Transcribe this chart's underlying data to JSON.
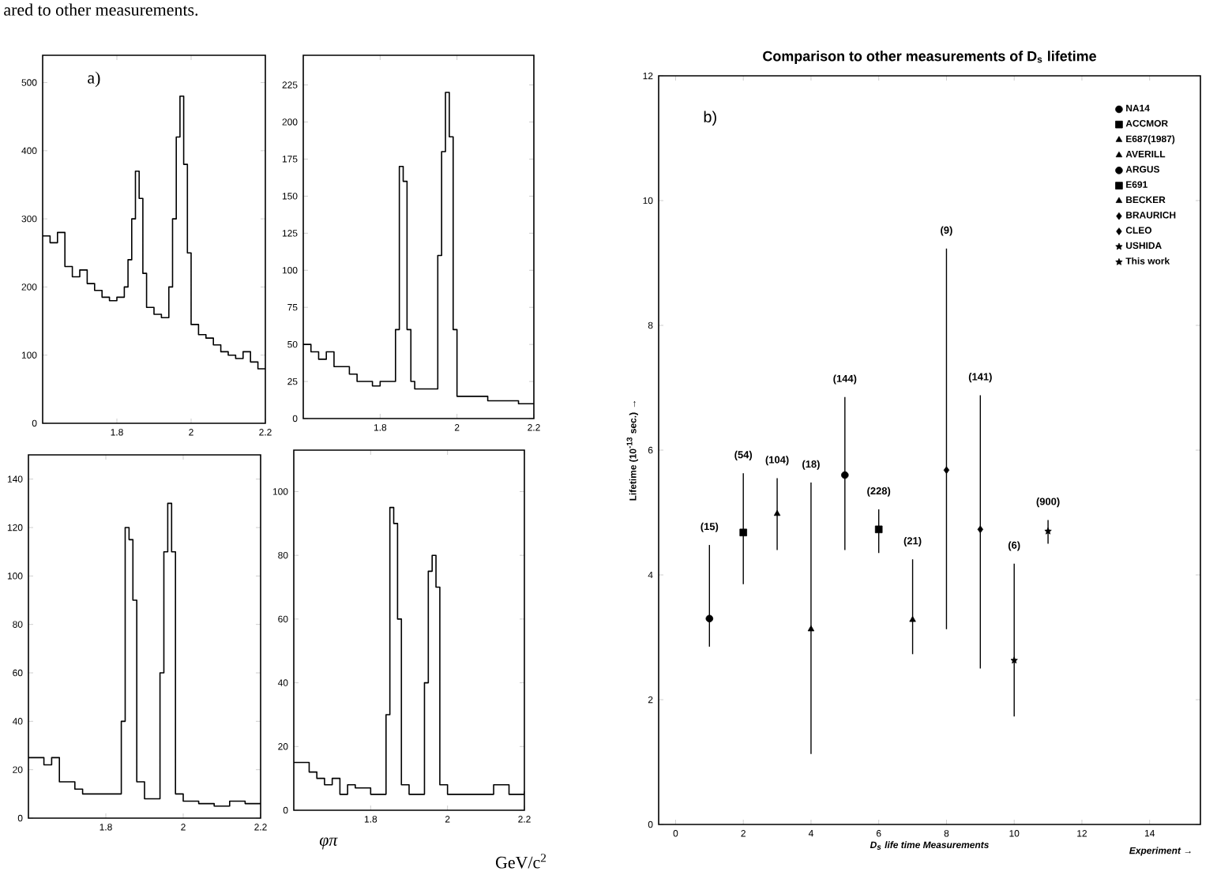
{
  "chart_data": [
    {
      "type": "step",
      "annotations": [
        "ared to other measurements.",
        "a)"
      ],
      "xlim": [
        1.6,
        2.2
      ],
      "ylim": [
        0,
        540
      ],
      "xticks": [
        1.8,
        2,
        2.2
      ],
      "yticks": [
        0,
        100,
        200,
        300,
        400,
        500
      ],
      "x": [
        1.6,
        1.62,
        1.64,
        1.66,
        1.68,
        1.7,
        1.72,
        1.74,
        1.76,
        1.78,
        1.8,
        1.82,
        1.83,
        1.84,
        1.85,
        1.86,
        1.87,
        1.88,
        1.9,
        1.92,
        1.94,
        1.95,
        1.96,
        1.97,
        1.98,
        1.99,
        2.0,
        2.02,
        2.04,
        2.06,
        2.08,
        2.1,
        2.12,
        2.14,
        2.16,
        2.18,
        2.2
      ],
      "series": [
        {
          "color": "#000000",
          "values": [
            275,
            265,
            280,
            230,
            215,
            225,
            205,
            195,
            185,
            180,
            185,
            200,
            240,
            300,
            370,
            330,
            220,
            170,
            160,
            155,
            200,
            300,
            420,
            480,
            380,
            250,
            145,
            130,
            125,
            115,
            105,
            100,
            95,
            105,
            90,
            80,
            80
          ]
        }
      ]
    },
    {
      "type": "step",
      "xlim": [
        1.6,
        2.2
      ],
      "ylim": [
        0,
        245
      ],
      "xticks": [
        1.8,
        2,
        2.2
      ],
      "yticks": [
        0,
        25,
        50,
        75,
        100,
        125,
        150,
        175,
        200,
        225
      ],
      "x": [
        1.6,
        1.62,
        1.64,
        1.66,
        1.68,
        1.7,
        1.72,
        1.74,
        1.76,
        1.78,
        1.8,
        1.82,
        1.84,
        1.85,
        1.86,
        1.87,
        1.88,
        1.89,
        1.91,
        1.93,
        1.95,
        1.96,
        1.97,
        1.98,
        1.99,
        2.0,
        2.04,
        2.08,
        2.12,
        2.16,
        2.2
      ],
      "series": [
        {
          "color": "#000000",
          "values": [
            50,
            45,
            40,
            45,
            35,
            35,
            30,
            25,
            25,
            22,
            25,
            25,
            60,
            170,
            160,
            60,
            25,
            20,
            20,
            20,
            110,
            180,
            220,
            190,
            60,
            15,
            15,
            12,
            12,
            10,
            10
          ]
        }
      ]
    },
    {
      "type": "step",
      "xlim": [
        1.6,
        2.2
      ],
      "ylim": [
        0,
        150
      ],
      "xticks": [
        1.8,
        2,
        2.2
      ],
      "yticks": [
        0,
        20,
        40,
        60,
        80,
        100,
        120,
        140
      ],
      "x": [
        1.6,
        1.62,
        1.64,
        1.66,
        1.68,
        1.7,
        1.72,
        1.74,
        1.76,
        1.78,
        1.8,
        1.82,
        1.84,
        1.85,
        1.86,
        1.87,
        1.88,
        1.9,
        1.92,
        1.94,
        1.95,
        1.96,
        1.97,
        1.98,
        2.0,
        2.04,
        2.08,
        2.12,
        2.16,
        2.2
      ],
      "series": [
        {
          "color": "#000000",
          "values": [
            25,
            25,
            22,
            25,
            15,
            15,
            12,
            10,
            10,
            10,
            10,
            10,
            40,
            120,
            115,
            90,
            15,
            8,
            8,
            60,
            110,
            130,
            110,
            10,
            7,
            6,
            5,
            7,
            6,
            6
          ]
        }
      ]
    },
    {
      "type": "step",
      "xlabel": "φπ",
      "annotations": [
        "GeV/c$^{2}$"
      ],
      "xlim": [
        1.6,
        2.2
      ],
      "ylim": [
        0,
        113
      ],
      "xticks": [
        1.8,
        2,
        2.2
      ],
      "yticks": [
        0,
        20,
        40,
        60,
        80,
        100
      ],
      "x": [
        1.6,
        1.62,
        1.64,
        1.66,
        1.68,
        1.7,
        1.72,
        1.74,
        1.76,
        1.78,
        1.8,
        1.82,
        1.84,
        1.85,
        1.86,
        1.87,
        1.88,
        1.9,
        1.92,
        1.94,
        1.95,
        1.96,
        1.97,
        1.98,
        2.0,
        2.04,
        2.08,
        2.12,
        2.16,
        2.2
      ],
      "series": [
        {
          "color": "#000000",
          "values": [
            15,
            15,
            12,
            10,
            8,
            10,
            5,
            8,
            7,
            7,
            5,
            5,
            30,
            95,
            90,
            60,
            8,
            5,
            5,
            40,
            75,
            80,
            70,
            8,
            5,
            5,
            5,
            8,
            5,
            6
          ]
        }
      ]
    },
    {
      "type": "scatter",
      "title": "Comparison to other measurements of D$_{s}$ lifetime",
      "xlabel": "D$_{s}$ life time Measurements",
      "ylabel": "Lifetime (10$^{-13}$ sec.) →",
      "legend": "top right",
      "xlim": [
        -0.5,
        15.5
      ],
      "ylim": [
        0,
        12
      ],
      "xticks": [
        0,
        2,
        4,
        6,
        8,
        10,
        12,
        14
      ],
      "yticks": [
        0,
        2,
        4,
        6,
        8,
        10,
        12
      ],
      "annotations": [
        "b)",
        "Experiment →",
        "(15)",
        "(54)",
        "(104)",
        "(18)",
        "(144)",
        "(228)",
        "(21)",
        "(9)",
        "(141)",
        "(6)",
        "(900)"
      ],
      "series": [
        {
          "name": "NA14",
          "color": "#000000",
          "marker": "circle",
          "x": [
            1
          ],
          "values": [
            3.3
          ],
          "errors": [
            [
              2.85,
              4.48
            ]
          ]
        },
        {
          "name": "ACCMOR",
          "color": "#000000",
          "marker": "square",
          "x": [
            2
          ],
          "values": [
            4.68
          ],
          "errors": [
            [
              3.85,
              5.63
            ]
          ]
        },
        {
          "name": "E687(1987)",
          "color": "#000000",
          "marker": "triangle",
          "x": [
            3
          ],
          "values": [
            4.98
          ],
          "errors": [
            [
              4.4,
              5.55
            ]
          ]
        },
        {
          "name": "AVERILL",
          "color": "#000000",
          "marker": "triangle",
          "x": [
            4
          ],
          "values": [
            3.13
          ],
          "errors": [
            [
              1.13,
              5.48
            ]
          ]
        },
        {
          "name": "ARGUS",
          "color": "#000000",
          "marker": "circle",
          "x": [
            5
          ],
          "values": [
            5.6
          ],
          "errors": [
            [
              4.4,
              6.85
            ]
          ]
        },
        {
          "name": "E691",
          "color": "#000000",
          "marker": "square",
          "x": [
            6
          ],
          "values": [
            4.73
          ],
          "errors": [
            [
              4.35,
              5.05
            ]
          ]
        },
        {
          "name": "BECKER",
          "color": "#000000",
          "marker": "triangle",
          "x": [
            7
          ],
          "values": [
            3.28
          ],
          "errors": [
            [
              2.73,
              4.25
            ]
          ]
        },
        {
          "name": "BRAURICH",
          "color": "#000000",
          "marker": "diamond",
          "x": [
            8
          ],
          "values": [
            5.68
          ],
          "errors": [
            [
              3.13,
              9.23
            ]
          ]
        },
        {
          "name": "CLEO",
          "color": "#000000",
          "marker": "diamond",
          "x": [
            9
          ],
          "values": [
            4.73
          ],
          "errors": [
            [
              2.5,
              6.88
            ]
          ]
        },
        {
          "name": "USHIDA",
          "color": "#000000",
          "marker": "star",
          "x": [
            10
          ],
          "values": [
            2.63
          ],
          "errors": [
            [
              1.73,
              4.18
            ]
          ]
        },
        {
          "name": "This work",
          "color": "#000000",
          "marker": "star",
          "x": [
            11
          ],
          "values": [
            4.7
          ],
          "errors": [
            [
              4.5,
              4.88
            ]
          ]
        }
      ]
    }
  ]
}
